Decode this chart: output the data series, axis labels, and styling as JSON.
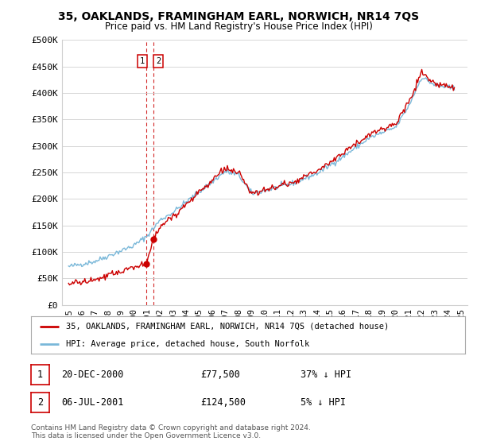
{
  "title": "35, OAKLANDS, FRAMINGHAM EARL, NORWICH, NR14 7QS",
  "subtitle": "Price paid vs. HM Land Registry's House Price Index (HPI)",
  "legend_line1": "35, OAKLANDS, FRAMINGHAM EARL, NORWICH, NR14 7QS (detached house)",
  "legend_line2": "HPI: Average price, detached house, South Norfolk",
  "footer": "Contains HM Land Registry data © Crown copyright and database right 2024.\nThis data is licensed under the Open Government Licence v3.0.",
  "sale1_label": "1",
  "sale1_date": "20-DEC-2000",
  "sale1_price": "£77,500",
  "sale1_hpi": "37% ↓ HPI",
  "sale1_year": 2000.97,
  "sale1_value": 77500,
  "sale2_label": "2",
  "sale2_date": "06-JUL-2001",
  "sale2_price": "£124,500",
  "sale2_hpi": "5% ↓ HPI",
  "sale2_year": 2001.51,
  "sale2_value": 124500,
  "hpi_color": "#7ab8d9",
  "price_color": "#cc0000",
  "marker_color": "#cc0000",
  "vline_color": "#cc0000",
  "background_color": "#ffffff",
  "grid_color": "#d0d0d0",
  "ylim": [
    0,
    500000
  ],
  "xlim": [
    1994.5,
    2025.5
  ],
  "yticks": [
    0,
    50000,
    100000,
    150000,
    200000,
    250000,
    300000,
    350000,
    400000,
    450000,
    500000
  ],
  "ytick_labels": [
    "£0",
    "£50K",
    "£100K",
    "£150K",
    "£200K",
    "£250K",
    "£300K",
    "£350K",
    "£400K",
    "£450K",
    "£500K"
  ],
  "xticks": [
    1995,
    1996,
    1997,
    1998,
    1999,
    2000,
    2001,
    2002,
    2003,
    2004,
    2005,
    2006,
    2007,
    2008,
    2009,
    2010,
    2011,
    2012,
    2013,
    2014,
    2015,
    2016,
    2017,
    2018,
    2019,
    2020,
    2021,
    2022,
    2023,
    2024,
    2025
  ],
  "hpi_nodes_t": [
    1995,
    1997,
    2000,
    2001,
    2002,
    2003,
    2007,
    2008,
    2009,
    2012,
    2014,
    2016,
    2018,
    2020,
    2021,
    2022,
    2023,
    2024.5
  ],
  "hpi_nodes_v": [
    72000,
    82000,
    112000,
    130000,
    160000,
    175000,
    252000,
    245000,
    210000,
    228000,
    248000,
    280000,
    315000,
    335000,
    375000,
    430000,
    415000,
    408000
  ],
  "prop_nodes_t": [
    1995,
    1997,
    2000,
    2000.97,
    2001.51,
    2002,
    2003,
    2007,
    2008,
    2009,
    2012,
    2014,
    2016,
    2018,
    2020,
    2021,
    2022,
    2023,
    2024.5
  ],
  "prop_nodes_v": [
    40000,
    46000,
    72000,
    77500,
    124500,
    148000,
    168000,
    258000,
    248000,
    210000,
    230000,
    252000,
    288000,
    322000,
    342000,
    382000,
    438000,
    418000,
    410000
  ],
  "noise_seed": 42,
  "hpi_noise_std": 2500,
  "prop_noise_std": 3000
}
